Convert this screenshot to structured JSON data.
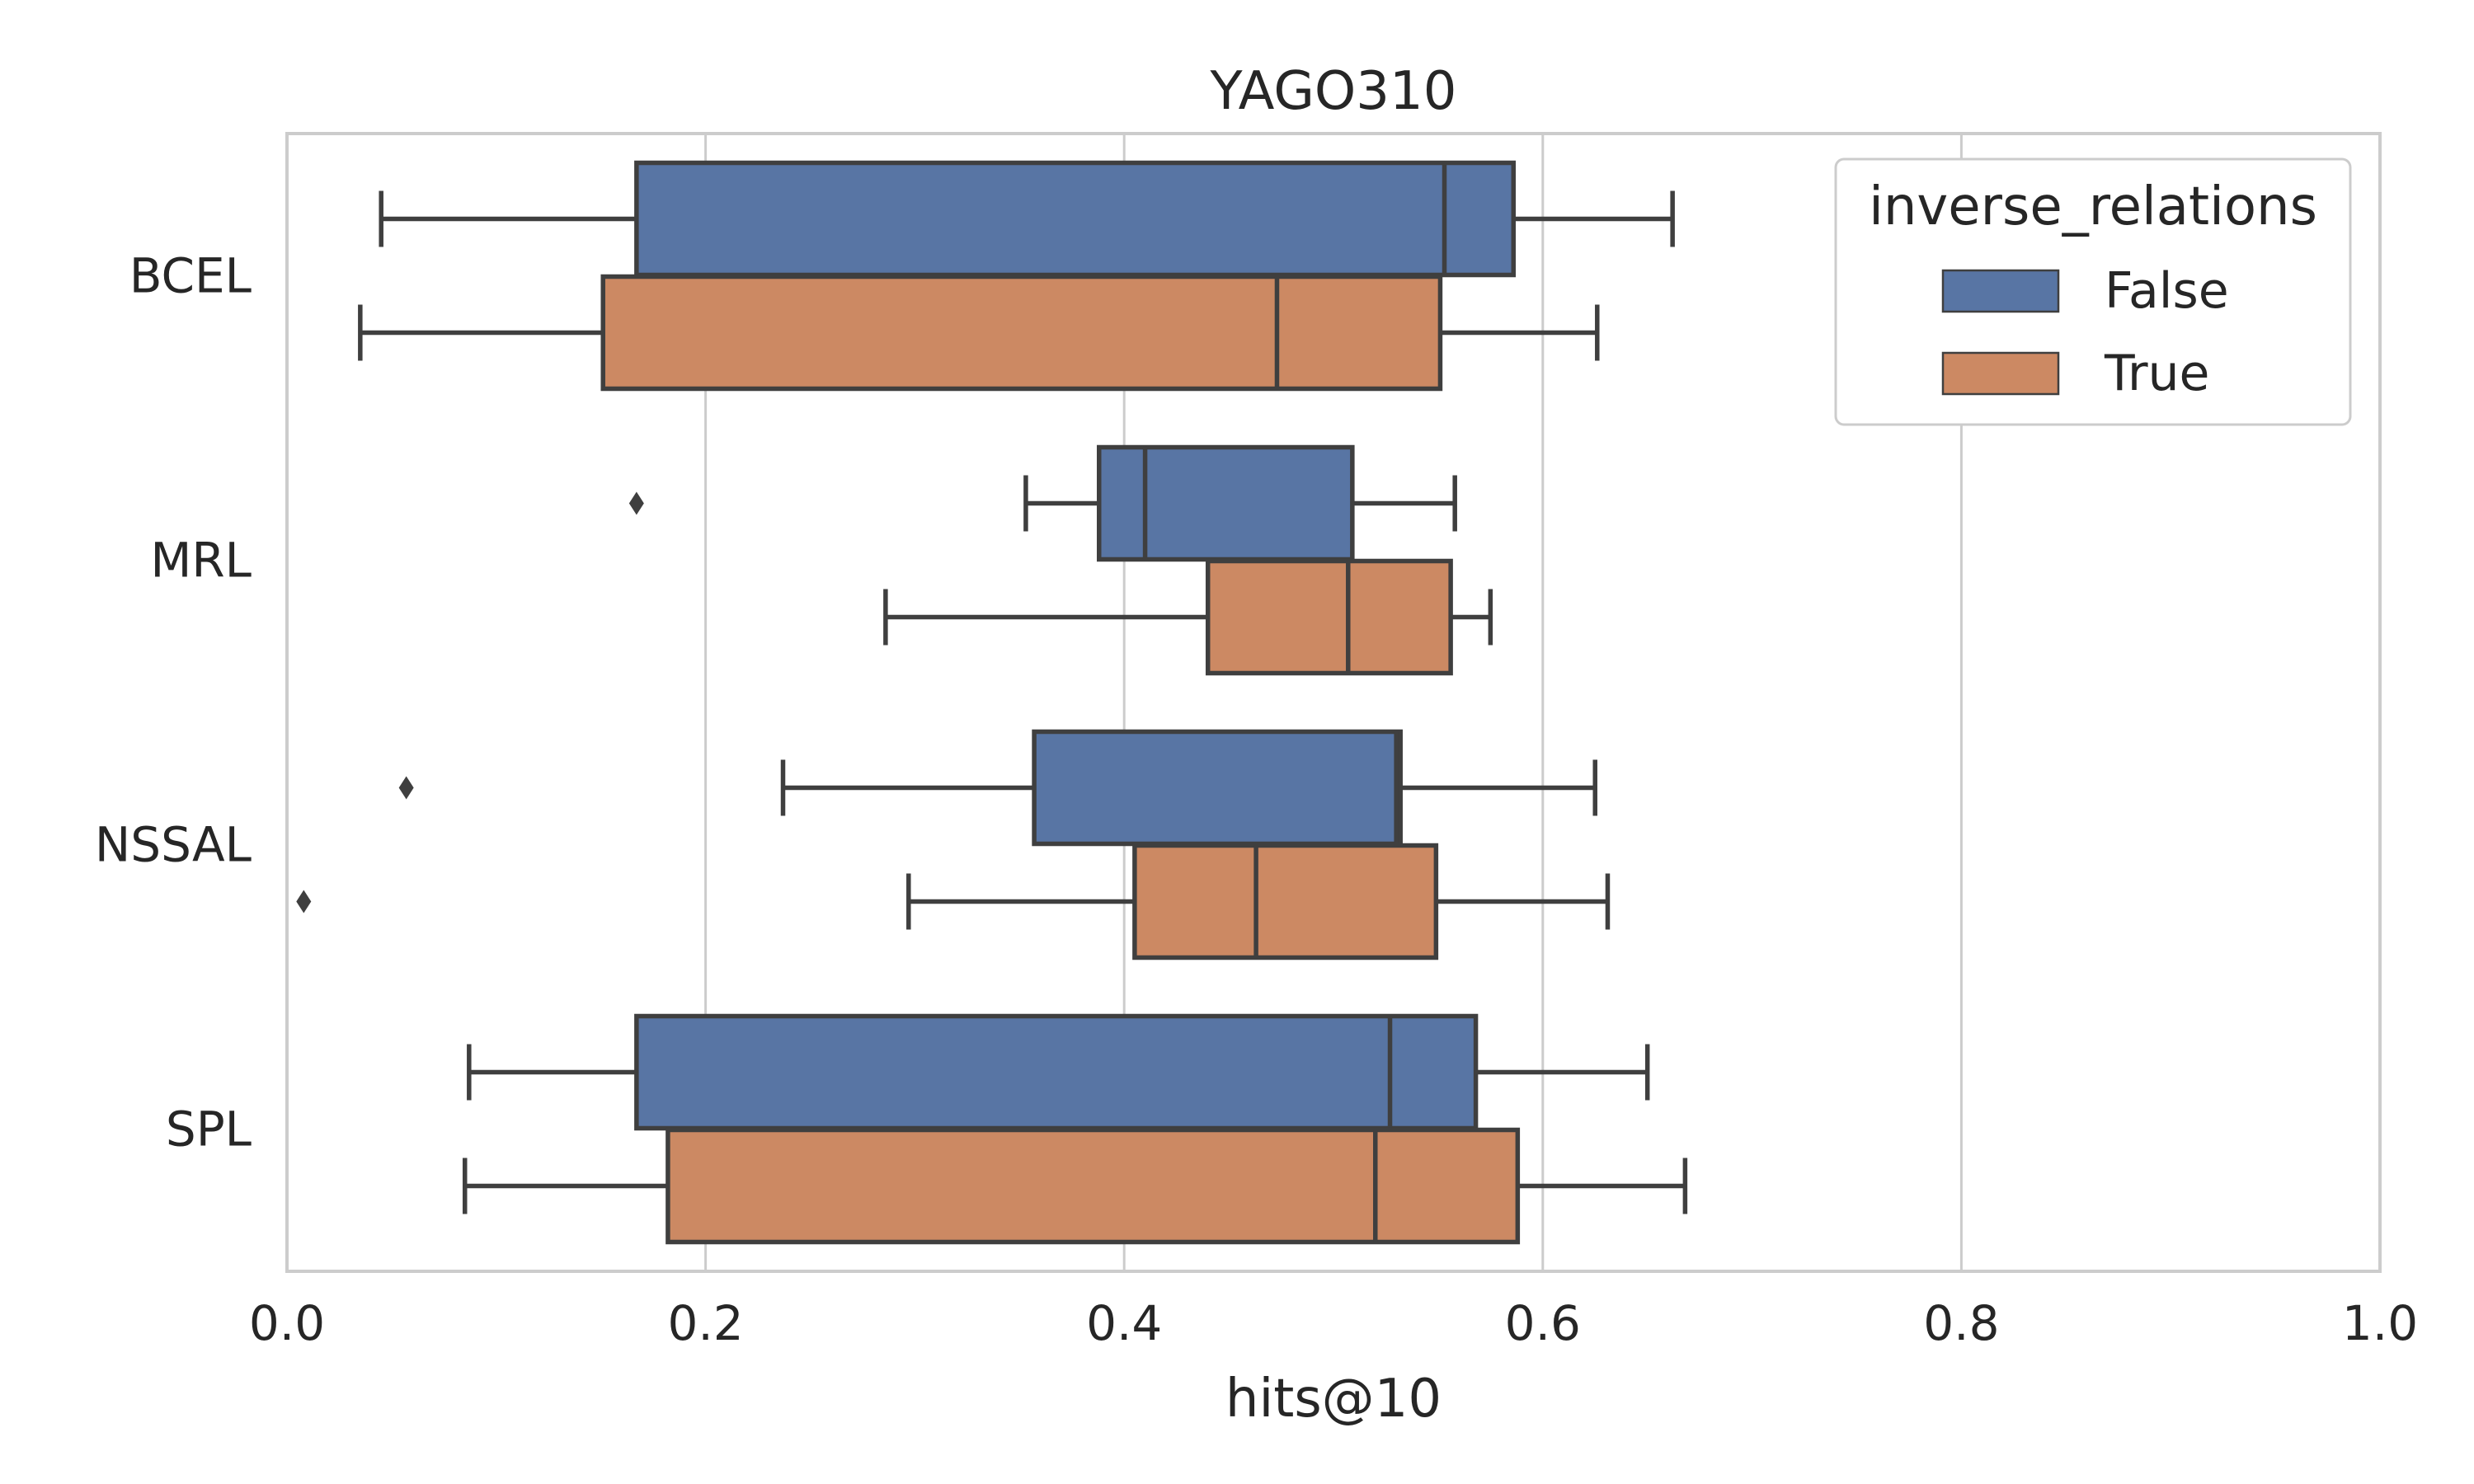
{
  "chart_data": {
    "type": "boxplot",
    "orientation": "horizontal",
    "title": "YAGO310",
    "xlabel": "hits@10",
    "ylabel": "",
    "xlim": [
      0.0,
      1.0
    ],
    "x_ticks": [
      "0.0",
      "0.2",
      "0.4",
      "0.6",
      "0.8",
      "1.0"
    ],
    "grid": "vertical",
    "categories": [
      "BCEL",
      "MRL",
      "NSSAL",
      "SPL"
    ],
    "legend": {
      "title": "inverse_relations",
      "placement": "top-right"
    },
    "series": [
      {
        "name": "False",
        "color": "#5875a4",
        "boxes": [
          {
            "category": "BCEL",
            "whislo": 0.045,
            "q1": 0.167,
            "med": 0.553,
            "q3": 0.586,
            "whishi": 0.662,
            "fliers": []
          },
          {
            "category": "MRL",
            "whislo": 0.353,
            "q1": 0.388,
            "med": 0.41,
            "q3": 0.509,
            "whishi": 0.558,
            "fliers": [
              0.167
            ]
          },
          {
            "category": "NSSAL",
            "whislo": 0.237,
            "q1": 0.357,
            "med": 0.53,
            "q3": 0.532,
            "whishi": 0.625,
            "fliers": [
              0.057
            ]
          },
          {
            "category": "SPL",
            "whislo": 0.087,
            "q1": 0.167,
            "med": 0.527,
            "q3": 0.568,
            "whishi": 0.65,
            "fliers": []
          }
        ]
      },
      {
        "name": "True",
        "color": "#cc8963",
        "boxes": [
          {
            "category": "BCEL",
            "whislo": 0.035,
            "q1": 0.151,
            "med": 0.473,
            "q3": 0.551,
            "whishi": 0.626,
            "fliers": []
          },
          {
            "category": "MRL",
            "whislo": 0.286,
            "q1": 0.44,
            "med": 0.507,
            "q3": 0.556,
            "whishi": 0.575,
            "fliers": []
          },
          {
            "category": "NSSAL",
            "whislo": 0.297,
            "q1": 0.405,
            "med": 0.463,
            "q3": 0.549,
            "whishi": 0.631,
            "fliers": [
              0.008
            ]
          },
          {
            "category": "SPL",
            "whislo": 0.085,
            "q1": 0.182,
            "med": 0.52,
            "q3": 0.588,
            "whishi": 0.668,
            "fliers": []
          }
        ]
      }
    ]
  }
}
